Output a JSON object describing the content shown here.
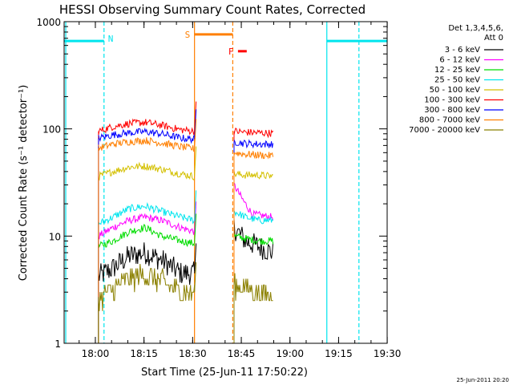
{
  "chart_data": {
    "type": "line",
    "title": "HESSI Observing Summary Count Rates, Corrected",
    "xlabel": "Start Time (25-Jun-11 17:50:22)",
    "ylabel": "Corrected Count Rate (s⁻¹ detector⁻¹)",
    "yscale": "log",
    "ylim": [
      1,
      1000
    ],
    "xlim_minutes_after_start": [
      0,
      99.6
    ],
    "x_tick_labels": [
      "18:00",
      "18:15",
      "18:30",
      "18:45",
      "19:00",
      "19:15",
      "19:30"
    ],
    "x_tick_minutes": [
      9.63,
      24.63,
      39.63,
      54.63,
      69.63,
      84.63,
      99.63
    ],
    "y_tick_labels": [
      "1",
      "10",
      "100",
      "1000"
    ],
    "y_tick_values": [
      1,
      10,
      100,
      1000
    ],
    "legend_header": [
      "Det 1,3,4,5,6,",
      "Att 0"
    ],
    "legend_placement": "right",
    "date_stamp": "25-Jun-2011 20:20",
    "segments": [
      [
        10.6,
        40.2
      ],
      [
        52.4,
        64.4
      ]
    ],
    "series": [
      {
        "name": "3 - 6 keV",
        "color": "#000000",
        "profile": [
          [
            10.6,
            4.2
          ],
          [
            15,
            5
          ],
          [
            20,
            6.5
          ],
          [
            25,
            7
          ],
          [
            30,
            6
          ],
          [
            36,
            4.5
          ],
          [
            40.2,
            4.5
          ]
        ],
        "profile2": [
          [
            52.4,
            12
          ],
          [
            56,
            9
          ],
          [
            60,
            8
          ],
          [
            64.4,
            7
          ]
        ]
      },
      {
        "name": "6 - 12 keV",
        "color": "#ff00ff",
        "profile": [
          [
            10.6,
            10
          ],
          [
            15,
            12
          ],
          [
            20,
            14
          ],
          [
            25,
            15
          ],
          [
            30,
            14
          ],
          [
            36,
            12
          ],
          [
            40.2,
            11
          ]
        ],
        "profile2": [
          [
            52.4,
            30
          ],
          [
            55,
            22
          ],
          [
            58,
            16
          ],
          [
            64.4,
            15
          ]
        ]
      },
      {
        "name": "12 - 25 keV",
        "color": "#00dd00",
        "profile": [
          [
            10.6,
            8
          ],
          [
            15,
            9
          ],
          [
            20,
            11
          ],
          [
            25,
            12
          ],
          [
            30,
            10
          ],
          [
            36,
            9
          ],
          [
            40.2,
            8.5
          ]
        ],
        "profile2": [
          [
            52.4,
            10
          ],
          [
            56,
            9.5
          ],
          [
            60,
            9
          ],
          [
            64.4,
            9
          ]
        ]
      },
      {
        "name": "25 - 50 keV",
        "color": "#00e5ee",
        "profile": [
          [
            10.6,
            13
          ],
          [
            15,
            15
          ],
          [
            20,
            18
          ],
          [
            25,
            19
          ],
          [
            30,
            17
          ],
          [
            36,
            15
          ],
          [
            40.2,
            14
          ]
        ],
        "profile2": [
          [
            52.4,
            17
          ],
          [
            56,
            15
          ],
          [
            60,
            14
          ],
          [
            64.4,
            14
          ]
        ]
      },
      {
        "name": "50 - 100 keV",
        "color": "#d4c000",
        "profile": [
          [
            10.6,
            36
          ],
          [
            15,
            40
          ],
          [
            20,
            44
          ],
          [
            25,
            45
          ],
          [
            30,
            42
          ],
          [
            36,
            38
          ],
          [
            40.2,
            36
          ]
        ],
        "profile2": [
          [
            52.4,
            38
          ],
          [
            56,
            37
          ],
          [
            60,
            37
          ],
          [
            64.4,
            36
          ]
        ]
      },
      {
        "name": "100 - 300 keV",
        "color": "#ff0000",
        "profile": [
          [
            10.6,
            95
          ],
          [
            15,
            105
          ],
          [
            20,
            112
          ],
          [
            25,
            115
          ],
          [
            30,
            108
          ],
          [
            36,
            98
          ],
          [
            40.2,
            95
          ]
        ],
        "profile2": [
          [
            52.4,
            95
          ],
          [
            56,
            93
          ],
          [
            60,
            92
          ],
          [
            64.4,
            91
          ]
        ]
      },
      {
        "name": "300 - 800 keV",
        "color": "#0000ff",
        "profile": [
          [
            10.6,
            82
          ],
          [
            15,
            88
          ],
          [
            20,
            92
          ],
          [
            25,
            94
          ],
          [
            30,
            90
          ],
          [
            36,
            82
          ],
          [
            40.2,
            80
          ]
        ],
        "profile2": [
          [
            52.4,
            76
          ],
          [
            56,
            73
          ],
          [
            60,
            72
          ],
          [
            64.4,
            72
          ]
        ]
      },
      {
        "name": "800 - 7000 keV",
        "color": "#ff7f00",
        "profile": [
          [
            10.6,
            66
          ],
          [
            15,
            72
          ],
          [
            20,
            76
          ],
          [
            25,
            78
          ],
          [
            30,
            74
          ],
          [
            36,
            68
          ],
          [
            40.2,
            65
          ]
        ],
        "profile2": [
          [
            52.4,
            60
          ],
          [
            56,
            58
          ],
          [
            60,
            57
          ],
          [
            64.4,
            56
          ]
        ]
      },
      {
        "name": "7000 - 20000 keV",
        "color": "#8b8000",
        "profile": [
          [
            10.6,
            2.7
          ],
          [
            15,
            3.2
          ],
          [
            20,
            4
          ],
          [
            25,
            4.3
          ],
          [
            30,
            3.8
          ],
          [
            36,
            3
          ],
          [
            40.2,
            3
          ]
        ],
        "profile2": [
          [
            52.4,
            3.5
          ],
          [
            56,
            3.3
          ],
          [
            60,
            3
          ],
          [
            64.4,
            2.8
          ]
        ]
      }
    ],
    "flag_bars": [
      {
        "label": "",
        "color": "#00e5ee",
        "x": [
          0,
          12.3
        ],
        "level": 660
      },
      {
        "label": "",
        "color": "#00e5ee",
        "x": [
          81,
          99.6
        ],
        "level": 660
      },
      {
        "label": "S",
        "color": "#ff7f00",
        "x": [
          40.2,
          52.0
        ],
        "level": 760
      },
      {
        "label": "F",
        "color": "#ff0000",
        "x": [
          53.6,
          56.3
        ],
        "level": 530
      }
    ],
    "flag_lines": [
      {
        "label": "N",
        "color": "#00e5ee",
        "x": 12.3,
        "dashed": true
      },
      {
        "label": "",
        "color": "#00e5ee",
        "x": 81.0,
        "dashed": false
      },
      {
        "label": "",
        "color": "#00e5ee",
        "x": 90.9,
        "dashed": true
      },
      {
        "label": "",
        "color": "#00e5ee",
        "x": 0.5,
        "dashed": false
      },
      {
        "label": "",
        "color": "#ff7f00",
        "x": 40.2,
        "dashed": false
      },
      {
        "label": "",
        "color": "#ff7f00",
        "x": 52.0,
        "dashed": true
      }
    ]
  }
}
